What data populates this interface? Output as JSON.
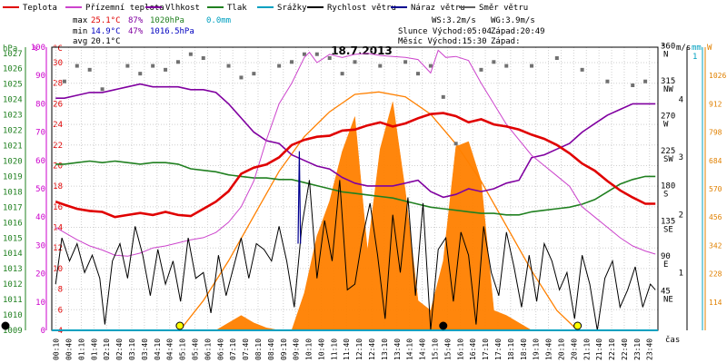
{
  "chart_data": {
    "type": "line",
    "title": "18.7.2013",
    "legend": [
      {
        "label": "Teplota",
        "color": "#e00000"
      },
      {
        "label": "Přízemní teplota",
        "color": "#cc44cc"
      },
      {
        "label": "Vlhkost",
        "color": "#8000a0"
      },
      {
        "label": "Tlak",
        "color": "#208020"
      },
      {
        "label": "Srážky",
        "color": "#00a0c0"
      },
      {
        "label": "Rychlost větru",
        "color": "#000000"
      },
      {
        "label": "Náraz větru",
        "color": "#000090"
      },
      {
        "label": "Směr větru",
        "color": "#606060"
      }
    ],
    "stats": {
      "max_label": "max",
      "max_temp": "25.1°C",
      "max_hum": "87%",
      "max_press": "1020hPa",
      "max_rain": "0.0mm",
      "min_label": "min",
      "min_temp": "14.9°C",
      "min_hum": "47%",
      "min_press": "1016.5hPa",
      "avg_label": "avg",
      "avg_temp": "20.1°C"
    },
    "info": {
      "ws": "WS:3.2m/s",
      "wg": "WG:3.9m/s",
      "sun_rise": "Slunce Východ:05:04",
      "sun_set": "Západ:20:49",
      "moon_rise": "Měsíc  Východ:15:30",
      "moon_set": "Západ:"
    },
    "axes": {
      "hpa_unit": "hPa",
      "pct_unit": "%",
      "c_unit": "°C",
      "hpa_ticks": [
        "1027",
        "1026",
        "1025",
        "1024",
        "1023",
        "1022",
        "1021",
        "1020",
        "1019",
        "1018",
        "1017",
        "1016",
        "1015",
        "1014",
        "1013",
        "1012",
        "1011",
        "1010",
        "1009"
      ],
      "pct_ticks": [
        "100",
        "90",
        "80",
        "70",
        "60",
        "50",
        "40",
        "30",
        "20",
        "10",
        "0"
      ],
      "c_ticks": [
        "30",
        "28",
        "26",
        "24",
        "22",
        "20",
        "18",
        "16",
        "14",
        "12",
        "10",
        "8",
        "6",
        "4"
      ],
      "deg_unit": "°",
      "dir_ticks": [
        {
          "deg": "360",
          "dir": "N"
        },
        {
          "deg": "315",
          "dir": "NW"
        },
        {
          "deg": "270",
          "dir": "W"
        },
        {
          "deg": "225",
          "dir": "SW"
        },
        {
          "deg": "180",
          "dir": "S"
        },
        {
          "deg": "135",
          "dir": "SE"
        },
        {
          "deg": "90",
          "dir": "E"
        },
        {
          "deg": "45",
          "dir": "NE"
        }
      ],
      "ms_unit": "m/s",
      "ms_ticks": [
        "4",
        "3",
        "2",
        "1"
      ],
      "mm_unit": "mm",
      "mm_top": "1",
      "w_unit": "W",
      "w_ticks": [
        "1026",
        "912",
        "798",
        "684",
        "570",
        "456",
        "342",
        "228",
        "114"
      ],
      "x_unit": "čas",
      "x_ticks": [
        "00:10",
        "00:40",
        "01:10",
        "01:40",
        "02:10",
        "02:40",
        "03:10",
        "03:40",
        "04:10",
        "04:40",
        "05:10",
        "05:40",
        "06:10",
        "06:40",
        "07:10",
        "07:40",
        "08:10",
        "08:40",
        "09:10",
        "09:40",
        "10:10",
        "10:40",
        "11:10",
        "11:40",
        "12:10",
        "12:40",
        "13:10",
        "13:40",
        "14:10",
        "14:40",
        "15:10",
        "15:40",
        "16:10",
        "16:40",
        "17:10",
        "17:40",
        "18:10",
        "18:40",
        "19:10",
        "19:40",
        "20:10",
        "20:40",
        "21:10",
        "21:40",
        "22:10",
        "22:40",
        "23:10",
        "23:40"
      ],
      "x_range_hours": [
        0,
        24
      ],
      "temp_range": [
        4,
        31.5
      ],
      "hum_range": [
        0,
        100
      ],
      "press_range": [
        1009,
        1027.4
      ],
      "wind_range_ms": [
        0,
        4.9
      ],
      "dir_range_deg": [
        0,
        364
      ],
      "solar_range_w": [
        0,
        1140
      ]
    },
    "series": [
      {
        "name": "Teplota",
        "unit": "°C",
        "x": [
          0.15,
          0.5,
          1,
          1.5,
          2,
          2.5,
          3,
          3.5,
          4,
          4.5,
          5,
          5.5,
          6,
          6.5,
          7,
          7.5,
          8,
          8.5,
          9,
          9.5,
          10,
          10.5,
          11,
          11.5,
          12,
          12.5,
          13,
          13.5,
          14,
          14.5,
          15,
          15.5,
          16,
          16.5,
          17,
          17.5,
          18,
          18.5,
          19,
          19.5,
          20,
          20.5,
          21,
          21.5,
          22,
          22.5,
          23,
          23.5,
          23.9
        ],
        "y": [
          16.5,
          16.2,
          15.8,
          15.6,
          15.5,
          15.0,
          15.2,
          15.4,
          15.2,
          15.5,
          15.2,
          15.1,
          15.8,
          16.5,
          17.5,
          19.2,
          19.8,
          20.1,
          20.8,
          22.0,
          22.5,
          22.8,
          22.9,
          23.4,
          23.5,
          23.9,
          24.2,
          23.8,
          24.1,
          24.6,
          25.0,
          25.1,
          24.8,
          24.2,
          24.5,
          24.0,
          23.8,
          23.5,
          23.0,
          22.6,
          22.0,
          21.2,
          20.2,
          19.5,
          18.5,
          17.6,
          16.9,
          16.3,
          16.3
        ]
      },
      {
        "name": "Přízemní teplota",
        "unit": "°C",
        "x": [
          0.15,
          0.5,
          1,
          1.5,
          2,
          2.5,
          3,
          3.5,
          4,
          4.5,
          5,
          5.5,
          6,
          6.5,
          7,
          7.5,
          8,
          8.5,
          9,
          9.5,
          10,
          10.2,
          10.5,
          11,
          11.5,
          12,
          12.5,
          13,
          13.5,
          14,
          14.5,
          15,
          15.3,
          15.6,
          16,
          16.5,
          17,
          17.5,
          18,
          18.5,
          19,
          19.5,
          20,
          20.5,
          21,
          21.5,
          22,
          22.5,
          23,
          23.5,
          23.9
        ],
        "y": [
          14.0,
          13.5,
          12.8,
          12.2,
          11.8,
          11.3,
          11.2,
          11.5,
          12.0,
          12.2,
          12.5,
          12.8,
          13.0,
          13.5,
          14.5,
          16.0,
          18.5,
          22.5,
          26.0,
          28.0,
          30.5,
          31.0,
          30.0,
          30.8,
          30.5,
          30.8,
          30.9,
          30.7,
          30.6,
          30.5,
          30.3,
          29.0,
          31.2,
          30.5,
          30.6,
          30.2,
          28.0,
          26.0,
          24.0,
          22.5,
          21.0,
          20.0,
          19.0,
          18.0,
          16.0,
          15.0,
          14.0,
          13.0,
          12.2,
          11.7,
          11.4
        ]
      },
      {
        "name": "Vlhkost",
        "unit": "%",
        "x": [
          0.15,
          0.5,
          1,
          1.5,
          2,
          2.5,
          3,
          3.5,
          4,
          4.5,
          5,
          5.5,
          6,
          6.5,
          7,
          7.5,
          8,
          8.5,
          9,
          9.5,
          10,
          10.5,
          11,
          11.5,
          12,
          12.5,
          13,
          13.5,
          14,
          14.5,
          15,
          15.5,
          16,
          16.5,
          17,
          17.5,
          18,
          18.5,
          19,
          19.5,
          20,
          20.5,
          21,
          21.5,
          22,
          22.5,
          23,
          23.5,
          23.9
        ],
        "y": [
          82,
          82,
          83,
          84,
          84,
          85,
          86,
          87,
          86,
          86,
          86,
          85,
          85,
          84,
          80,
          75,
          70,
          67,
          66,
          62,
          60,
          58,
          57,
          54,
          52,
          51,
          51,
          51,
          52,
          53,
          49,
          47,
          48,
          50,
          49,
          50,
          52,
          53,
          61,
          62,
          64,
          66,
          70,
          73,
          76,
          78,
          80,
          80,
          80
        ]
      },
      {
        "name": "Tlak",
        "unit": "hPa",
        "x": [
          0.15,
          0.5,
          1,
          1.5,
          2,
          2.5,
          3,
          3.5,
          4,
          4.5,
          5,
          5.5,
          6,
          6.5,
          7,
          7.5,
          8,
          8.5,
          9,
          9.5,
          10,
          10.5,
          11,
          11.5,
          12,
          12.5,
          13,
          13.5,
          14,
          14.5,
          15,
          15.5,
          16,
          16.5,
          17,
          17.5,
          18,
          18.5,
          19,
          19.5,
          20,
          20.5,
          21,
          21.5,
          22,
          22.5,
          23,
          23.5,
          23.9
        ],
        "y": [
          1019.8,
          1019.8,
          1019.9,
          1020.0,
          1019.9,
          1020.0,
          1019.9,
          1019.8,
          1019.9,
          1019.9,
          1019.8,
          1019.5,
          1019.4,
          1019.3,
          1019.1,
          1019.0,
          1018.9,
          1018.9,
          1018.8,
          1018.8,
          1018.6,
          1018.4,
          1018.2,
          1018.0,
          1017.9,
          1017.8,
          1017.7,
          1017.6,
          1017.4,
          1017.2,
          1017.0,
          1016.9,
          1016.8,
          1016.7,
          1016.6,
          1016.6,
          1016.5,
          1016.5,
          1016.7,
          1016.8,
          1016.9,
          1017.0,
          1017.2,
          1017.5,
          1018.0,
          1018.5,
          1018.8,
          1019.0,
          1019.0
        ]
      },
      {
        "name": "Rychlost větru",
        "unit": "m/s",
        "x": [
          0.15,
          0.4,
          0.7,
          1.0,
          1.3,
          1.6,
          1.9,
          2.1,
          2.4,
          2.7,
          3.0,
          3.3,
          3.6,
          3.9,
          4.2,
          4.5,
          4.8,
          5.1,
          5.4,
          5.7,
          6.0,
          6.3,
          6.6,
          6.9,
          7.2,
          7.5,
          7.8,
          8.1,
          8.4,
          8.7,
          9.0,
          9.3,
          9.6,
          9.9,
          10.2,
          10.5,
          10.8,
          11.1,
          11.4,
          11.7,
          12.0,
          12.3,
          12.6,
          12.9,
          13.2,
          13.5,
          13.8,
          14.1,
          14.4,
          14.7,
          15.0,
          15.3,
          15.6,
          15.9,
          16.2,
          16.5,
          16.8,
          17.1,
          17.4,
          17.7,
          18.0,
          18.3,
          18.6,
          18.9,
          19.2,
          19.5,
          19.8,
          20.1,
          20.4,
          20.7,
          21.0,
          21.3,
          21.6,
          21.9,
          22.2,
          22.5,
          22.8,
          23.1,
          23.4,
          23.7,
          23.9
        ],
        "y": [
          0.8,
          1.6,
          1.2,
          1.5,
          1.0,
          1.3,
          0.9,
          0.1,
          1.2,
          1.5,
          0.9,
          1.8,
          1.3,
          0.6,
          1.4,
          0.8,
          1.2,
          0.5,
          1.6,
          0.9,
          1.0,
          0.3,
          1.3,
          0.6,
          1.1,
          1.6,
          0.9,
          1.5,
          1.4,
          1.2,
          1.8,
          1.2,
          0.4,
          1.8,
          2.6,
          0.9,
          1.9,
          1.2,
          2.6,
          0.7,
          0.8,
          1.6,
          2.2,
          1.3,
          0.2,
          2.0,
          1.0,
          2.3,
          0.6,
          2.2,
          0.0,
          1.4,
          1.6,
          0.5,
          1.7,
          1.3,
          0.1,
          1.8,
          1.0,
          0.6,
          1.7,
          1.1,
          0.4,
          1.3,
          0.5,
          1.5,
          1.2,
          0.7,
          1.0,
          0.2,
          1.3,
          0.8,
          0.0,
          0.9,
          1.2,
          0.4,
          0.7,
          1.1,
          0.4,
          0.8,
          0.7
        ]
      },
      {
        "name": "Náraz větru",
        "unit": "m/s",
        "x": [
          9.75,
          9.8,
          9.85
        ],
        "y": [
          1.5,
          3.1,
          1.5
        ]
      },
      {
        "name": "Sluneční záření",
        "unit": "W",
        "x": [
          5.0,
          5.5,
          6.0,
          6.5,
          7.0,
          7.5,
          8.0,
          8.5,
          9.0,
          9.5,
          10.0,
          10.5,
          11.0,
          11.5,
          12.0,
          12.5,
          13.0,
          13.5,
          14.0,
          14.5,
          15.0,
          15.5,
          16.0,
          16.5,
          17.0,
          17.5,
          18.0,
          18.5,
          19.0,
          19.5,
          20.0,
          20.5
        ],
        "y": [
          0,
          0,
          0,
          0,
          30,
          60,
          30,
          10,
          0,
          0,
          150,
          380,
          520,
          720,
          860,
          320,
          730,
          920,
          560,
          120,
          80,
          280,
          740,
          760,
          600,
          80,
          60,
          30,
          0,
          0,
          0,
          0
        ]
      },
      {
        "name": "Sluneční křivka",
        "unit": "W",
        "x": [
          5.07,
          6,
          7,
          8,
          9,
          10,
          11,
          12,
          12.95,
          14,
          15,
          16,
          17,
          18,
          19,
          20,
          20.82
        ],
        "y": [
          0,
          120,
          280,
          460,
          640,
          780,
          880,
          950,
          960,
          940,
          870,
          750,
          600,
          420,
          240,
          80,
          0
        ]
      },
      {
        "name": "Směr větru",
        "unit": "°",
        "x": [
          0.5,
          1,
          1.5,
          2,
          3,
          3.5,
          4,
          4.5,
          5,
          5.5,
          6,
          7,
          7.5,
          8,
          9,
          9.5,
          10,
          10.5,
          11,
          11.5,
          12,
          13,
          14,
          14.5,
          15,
          15.5,
          16,
          17,
          17.5,
          18,
          19,
          20,
          21,
          22,
          23,
          23.5
        ],
        "y": [
          320,
          340,
          335,
          310,
          340,
          330,
          340,
          335,
          345,
          355,
          350,
          340,
          325,
          330,
          340,
          345,
          355,
          355,
          350,
          330,
          345,
          340,
          345,
          330,
          340,
          300,
          240,
          335,
          345,
          340,
          340,
          350,
          335,
          320,
          315,
          320
        ]
      }
    ]
  }
}
